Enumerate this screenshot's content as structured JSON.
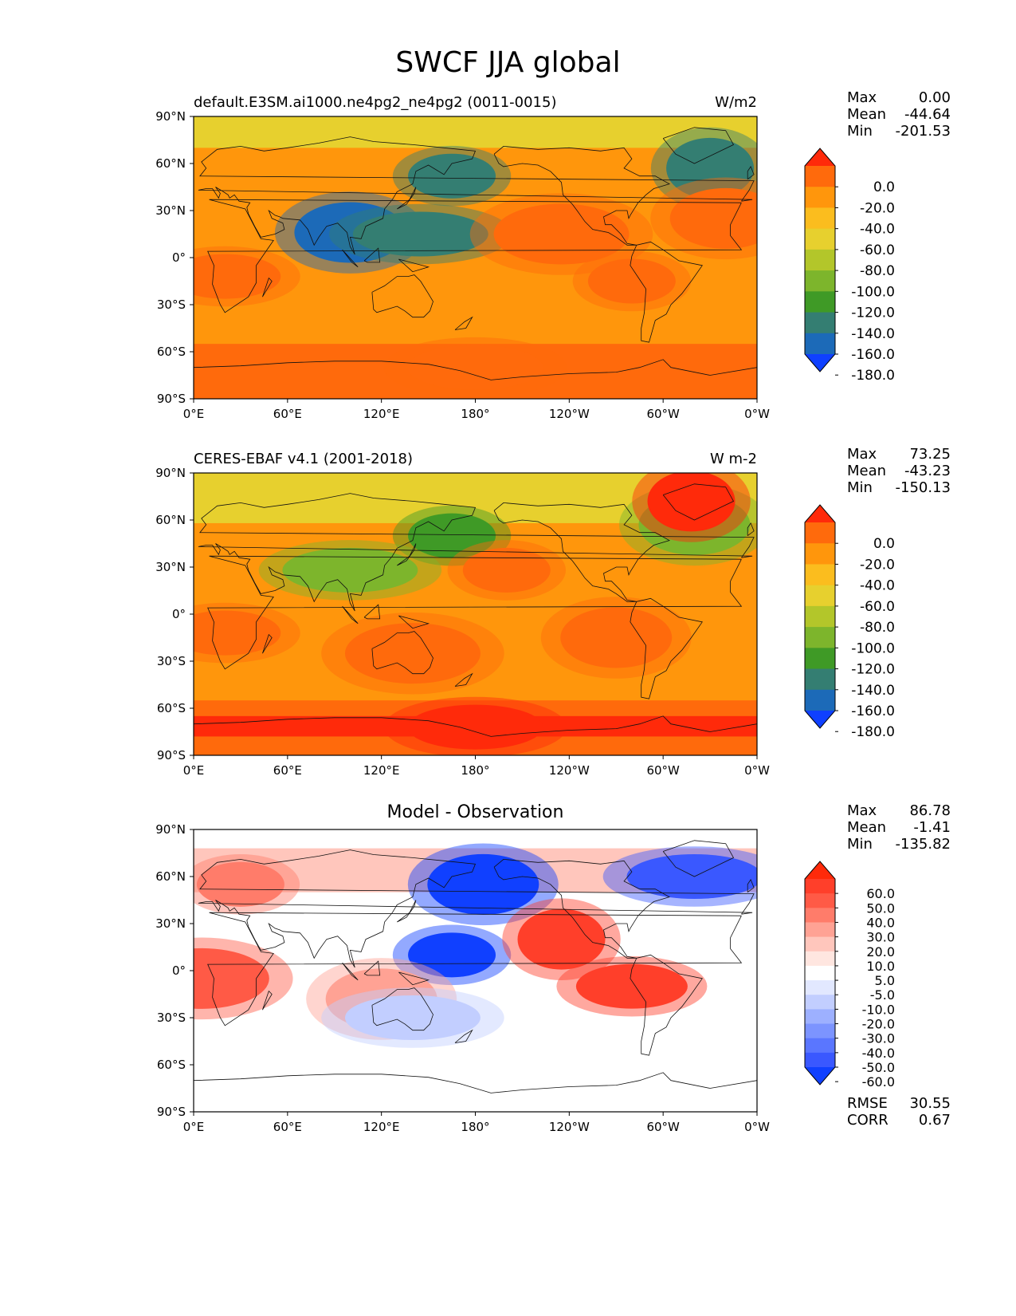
{
  "title": "SWCF JJA global",
  "chart_data": [
    {
      "type": "heatmap",
      "title_left": "default.E3SM.ai1000.ne4pg2_ne4pg2 (0011-0015)",
      "title_right": "W/m2",
      "stats": [
        {
          "label": "Max",
          "value": "0.00"
        },
        {
          "label": "Mean",
          "value": "-44.64"
        },
        {
          "label": "Min",
          "value": "-201.53"
        }
      ],
      "xticks": [
        "0°E",
        "60°E",
        "120°E",
        "180°",
        "120°W",
        "60°W",
        "0°W"
      ],
      "yticks": [
        "90°N",
        "60°N",
        "30°N",
        "0°",
        "30°S",
        "60°S",
        "90°S"
      ],
      "xlim": [
        0,
        360
      ],
      "ylim": [
        -90,
        90
      ],
      "colorbar": {
        "labels": [
          "0.0",
          "-20.0",
          "-40.0",
          "-60.0",
          "-80.0",
          "-100.0",
          "-120.0",
          "-140.0",
          "-160.0",
          "-180.0"
        ],
        "colors": [
          "#ff2a0a",
          "#ff6a0c",
          "#ff960c",
          "#fbbd1e",
          "#e7d02e",
          "#b3c62a",
          "#7db52c",
          "#3f9a26",
          "#347e72",
          "#1c6ab8",
          "#0f40ff"
        ]
      },
      "features": [
        {
          "lon": 165,
          "lat": 52,
          "value": -160
        },
        {
          "lon": 100,
          "lat": 16,
          "value": -170
        },
        {
          "lon": 145,
          "lat": 15,
          "value": -150
        },
        {
          "lon": 330,
          "lat": 57,
          "value": -150
        },
        {
          "lon": 20,
          "lat": -12,
          "value": -20
        },
        {
          "lon": 235,
          "lat": 15,
          "value": -20
        },
        {
          "lon": 280,
          "lat": -15,
          "value": -20
        },
        {
          "lon": 340,
          "lat": 25,
          "value": -20
        },
        {
          "lon": 180,
          "lat": -70,
          "value": -10
        }
      ]
    },
    {
      "type": "heatmap",
      "title_left": "CERES-EBAF v4.1 (2001-2018)",
      "title_right": "W m-2",
      "stats": [
        {
          "label": "Max",
          "value": "73.25"
        },
        {
          "label": "Mean",
          "value": "-43.23"
        },
        {
          "label": "Min",
          "value": "-150.13"
        }
      ],
      "xticks": [
        "0°E",
        "60°E",
        "120°E",
        "180°",
        "120°W",
        "60°W",
        "0°W"
      ],
      "yticks": [
        "90°N",
        "60°N",
        "30°N",
        "0°",
        "30°S",
        "60°S",
        "90°S"
      ],
      "xlim": [
        0,
        360
      ],
      "ylim": [
        -90,
        90
      ],
      "colorbar": {
        "labels": [
          "0.0",
          "-20.0",
          "-40.0",
          "-60.0",
          "-80.0",
          "-100.0",
          "-120.0",
          "-140.0",
          "-160.0",
          "-180.0"
        ],
        "colors": [
          "#ff2a0a",
          "#ff6a0c",
          "#ff960c",
          "#fbbd1e",
          "#e7d02e",
          "#b3c62a",
          "#7db52c",
          "#3f9a26",
          "#347e72",
          "#1c6ab8",
          "#0f40ff"
        ]
      },
      "features": [
        {
          "lon": 165,
          "lat": 50,
          "value": -130
        },
        {
          "lon": 320,
          "lat": 57,
          "value": -120
        },
        {
          "lon": 100,
          "lat": 28,
          "value": -110
        },
        {
          "lon": 318,
          "lat": 72,
          "value": 0
        },
        {
          "lon": 20,
          "lat": -12,
          "value": -20
        },
        {
          "lon": 140,
          "lat": -25,
          "value": -20
        },
        {
          "lon": 200,
          "lat": 28,
          "value": -20
        },
        {
          "lon": 270,
          "lat": -15,
          "value": -20
        },
        {
          "lon": 180,
          "lat": -72,
          "value": 0
        }
      ]
    },
    {
      "type": "heatmap",
      "title_center": "Model - Observation",
      "stats": [
        {
          "label": "Max",
          "value": "86.78"
        },
        {
          "label": "Mean",
          "value": "-1.41"
        },
        {
          "label": "Min",
          "value": "-135.82"
        }
      ],
      "extra_stats": [
        {
          "label": "RMSE",
          "value": "30.55"
        },
        {
          "label": "CORR",
          "value": "0.67"
        }
      ],
      "xticks": [
        "0°E",
        "60°E",
        "120°E",
        "180°",
        "120°W",
        "60°W",
        "0°W"
      ],
      "yticks": [
        "90°N",
        "60°N",
        "30°N",
        "0°",
        "30°S",
        "60°S",
        "90°S"
      ],
      "xlim": [
        0,
        360
      ],
      "ylim": [
        -90,
        90
      ],
      "colorbar": {
        "labels": [
          "60.0",
          "50.0",
          "40.0",
          "30.0",
          "20.0",
          "10.0",
          "5.0",
          "-5.0",
          "-10.0",
          "-20.0",
          "-30.0",
          "-40.0",
          "-50.0",
          "-60.0"
        ],
        "colors": [
          "#ff2a0a",
          "#ff3f2a",
          "#ff5a46",
          "#ff7c6a",
          "#ffa294",
          "#ffc6bc",
          "#ffe6e0",
          "#ffffff",
          "#e2e8ff",
          "#c2ceff",
          "#9db0ff",
          "#7c94ff",
          "#5a76ff",
          "#3a58ff",
          "#1040ff"
        ]
      },
      "features": [
        {
          "lon": 165,
          "lat": 10,
          "value": -80
        },
        {
          "lon": 185,
          "lat": 55,
          "value": -70
        },
        {
          "lon": 320,
          "lat": 60,
          "value": -60
        },
        {
          "lon": 235,
          "lat": 20,
          "value": 50
        },
        {
          "lon": 280,
          "lat": -10,
          "value": 50
        },
        {
          "lon": 5,
          "lat": -5,
          "value": 40
        },
        {
          "lon": 30,
          "lat": 55,
          "value": 30
        },
        {
          "lon": 120,
          "lat": -18,
          "value": 20
        },
        {
          "lon": 140,
          "lat": -30,
          "value": -20
        }
      ]
    }
  ]
}
